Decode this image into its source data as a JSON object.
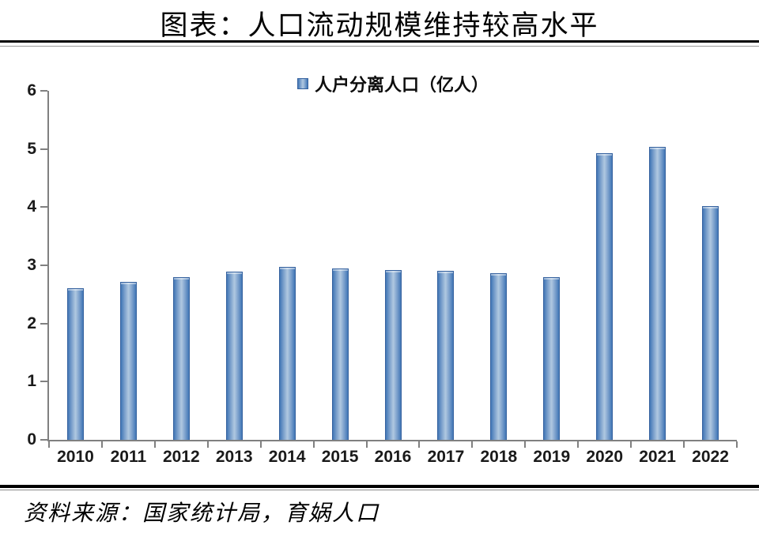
{
  "title": "图表：人口流动规模维持较高水平",
  "source": "资料来源：国家统计局，育娲人口",
  "chart_data": {
    "type": "bar",
    "title": "图表：人口流动规模维持较高水平",
    "legend": "人户分离人口（亿人）",
    "legend_position": "top-center",
    "categories": [
      "2010",
      "2011",
      "2012",
      "2013",
      "2014",
      "2015",
      "2016",
      "2017",
      "2018",
      "2019",
      "2020",
      "2021",
      "2022"
    ],
    "values": [
      2.61,
      2.71,
      2.79,
      2.89,
      2.97,
      2.94,
      2.92,
      2.91,
      2.86,
      2.8,
      4.93,
      5.04,
      4.02
    ],
    "xlabel": "",
    "ylabel": "",
    "ylim": [
      0,
      6
    ],
    "yticks": [
      0,
      1,
      2,
      3,
      4,
      5,
      6
    ],
    "grid": false,
    "colors": {
      "bar_edge": "#36629f",
      "bar_dark": "#4277b6",
      "bar_light": "#b0c8e0",
      "axis": "#808080",
      "text": "#1a1a1a"
    }
  }
}
